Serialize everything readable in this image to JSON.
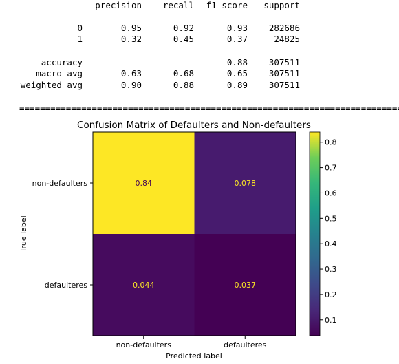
{
  "report": {
    "headers": [
      "precision",
      "recall",
      "f1-score",
      "support"
    ],
    "rows": [
      {
        "label": "0",
        "precision": "0.95",
        "recall": "0.92",
        "f1": "0.93",
        "support": "282686"
      },
      {
        "label": "1",
        "precision": "0.32",
        "recall": "0.45",
        "f1": "0.37",
        "support": "24825"
      },
      {
        "label": "accuracy",
        "precision": "",
        "recall": "",
        "f1": "0.88",
        "support": "307511"
      },
      {
        "label": "macro avg",
        "precision": "0.63",
        "recall": "0.68",
        "f1": "0.65",
        "support": "307511"
      },
      {
        "label": "weighted avg",
        "precision": "0.90",
        "recall": "0.88",
        "f1": "0.89",
        "support": "307511"
      }
    ],
    "separator": "================================================================================"
  },
  "chart_data": {
    "type": "heatmap",
    "title": "Confusion Matrix of Defaulters and Non-defaulters",
    "xlabel": "Predicted label",
    "ylabel": "True label",
    "x_categories": [
      "non-defaulters",
      "defaulteres"
    ],
    "y_categories": [
      "non-defaulters",
      "defaulteres"
    ],
    "values": [
      [
        0.84,
        0.078
      ],
      [
        0.044,
        0.037
      ]
    ],
    "value_labels": [
      [
        "0.84",
        "0.078"
      ],
      [
        "0.044",
        "0.037"
      ]
    ],
    "colormap": "viridis",
    "colorbar": {
      "ticks": [
        0.1,
        0.2,
        0.3,
        0.4,
        0.5,
        0.6,
        0.7,
        0.8
      ],
      "tick_labels": [
        "0.1",
        "0.2",
        "0.3",
        "0.4",
        "0.5",
        "0.6",
        "0.7",
        "0.8"
      ],
      "range": [
        0.037,
        0.84
      ]
    },
    "colors": {
      "cell_00": "#fde725",
      "cell_01": "#471b6e",
      "cell_10": "#460b5e",
      "cell_11": "#440154",
      "text_on_light": "#440154",
      "text_on_dark": "#fde725"
    }
  }
}
